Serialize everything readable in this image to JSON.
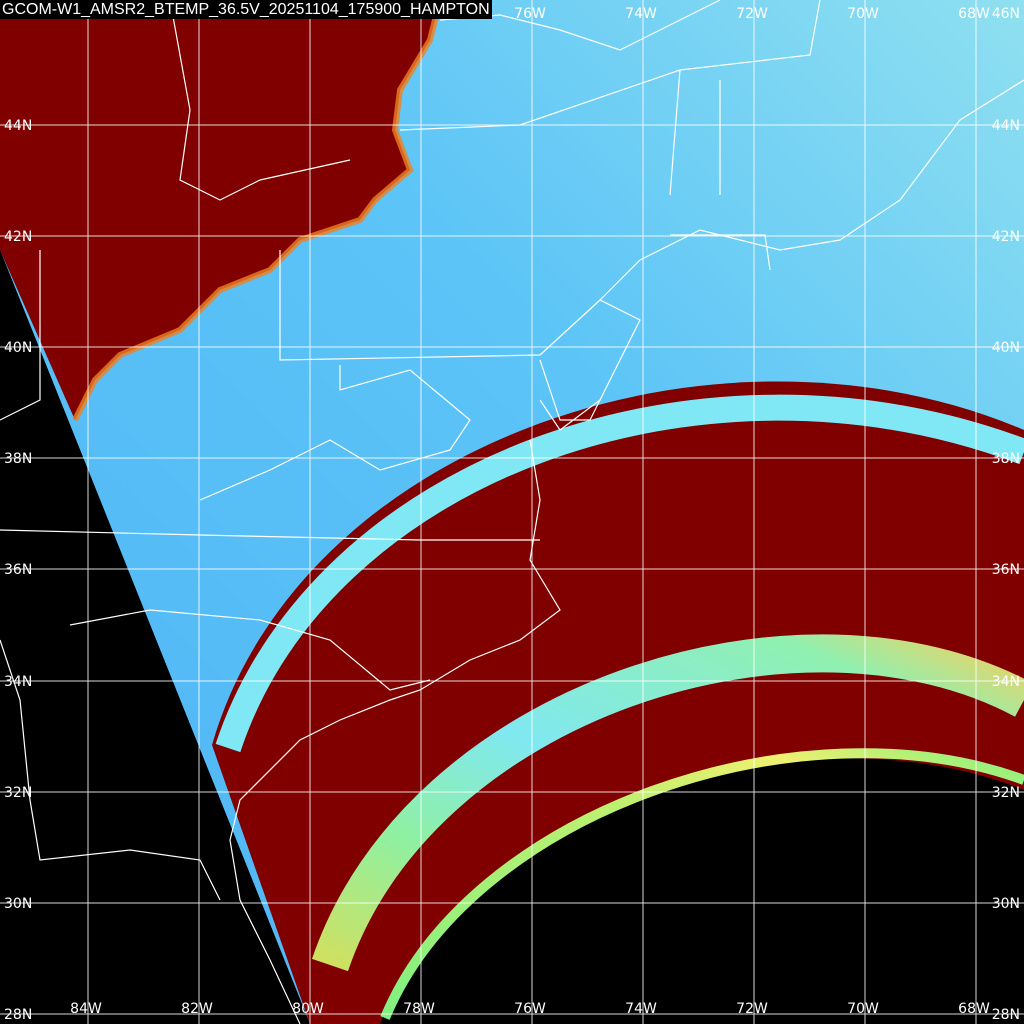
{
  "title": "GCOM-W1_AMSR2_BTEMP_36.5V_20251104_175900_HAMPTON",
  "lat_labels": [
    "44N",
    "42N",
    "40N",
    "38N",
    "36N",
    "34N",
    "32N",
    "30N",
    "28N"
  ],
  "lat_label_top_right": "46N",
  "lon_labels_top": [
    "76W",
    "74W",
    "72W",
    "70W",
    "68W"
  ],
  "lon_labels_bottom": [
    "84W",
    "82W",
    "80W",
    "78W",
    "76W",
    "74W",
    "72W",
    "70W",
    "68W"
  ],
  "colors": {
    "background": "#000000",
    "high_tb": "#800000",
    "ocean_low_tb": "#55bbf5",
    "ocean_light": "#7fd6f5",
    "swath_cyan": "#80eef5",
    "swath_green": "#80f080",
    "swath_yellow": "#f0f070",
    "grid": "#ffffff",
    "borders": "#ffffff"
  }
}
